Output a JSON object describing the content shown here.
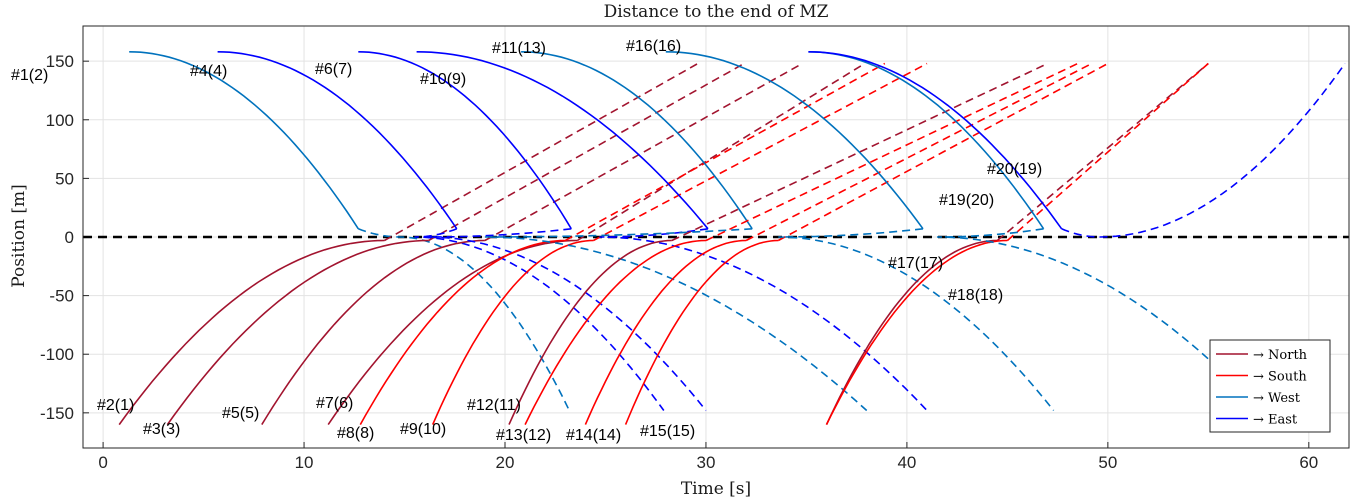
{
  "chart_data": {
    "type": "line",
    "title": "Distance to the end of MZ",
    "xlabel": "Time [s]",
    "ylabel": "Position [m]",
    "xlim": [
      -1,
      62
    ],
    "ylim": [
      -180,
      180
    ],
    "xticks": [
      0,
      10,
      20,
      30,
      40,
      50,
      60
    ],
    "yticks": [
      -150,
      -100,
      -50,
      0,
      50,
      100,
      150
    ],
    "grid": true,
    "legend_position": "bottom-right",
    "reference_line": {
      "y": 0,
      "style": "black dashed"
    },
    "colors": {
      "North": "#a2142f",
      "South": "#ff0000",
      "West": "#0072bd",
      "East": "#0000ff"
    },
    "legend": [
      {
        "key": "North",
        "label": "→ North"
      },
      {
        "key": "South",
        "label": "→ South"
      },
      {
        "key": "West",
        "label": "→ West"
      },
      {
        "key": "East",
        "label": "→ East"
      }
    ],
    "vehicles": [
      {
        "label": "#1(2)",
        "dir": "West",
        "t0": 1.3,
        "t1": 12.7,
        "tmin": 14.8,
        "tend": 23.2,
        "yend": -148
      },
      {
        "label": "#2(1)",
        "dir": "North",
        "t0": 0.8,
        "t1": 14.0,
        "tmin": 14.0,
        "tend": 29.6,
        "yend": 148
      },
      {
        "label": "#3(3)",
        "dir": "North",
        "t0": 3.2,
        "t1": 16.2,
        "tmin": 16.2,
        "tend": 31.9,
        "yend": 148
      },
      {
        "label": "#4(4)",
        "dir": "East",
        "t0": 5.7,
        "t1": 17.6,
        "tmin": 15.5,
        "tend": 27.9,
        "yend": -148
      },
      {
        "label": "#5(5)",
        "dir": "North",
        "t0": 7.9,
        "t1": 19.0,
        "tmin": 19.0,
        "tend": 34.8,
        "yend": 148
      },
      {
        "label": "#6(7)",
        "dir": "East",
        "t0": 12.7,
        "t1": 23.3,
        "tmin": 16.2,
        "tend": 30.0,
        "yend": -148
      },
      {
        "label": "#7(6)",
        "dir": "North",
        "t0": 11.2,
        "t1": 23.6,
        "tmin": 23.6,
        "tend": 37.9,
        "yend": 148
      },
      {
        "label": "#8(8)",
        "dir": "South",
        "t0": 12.8,
        "t1": 23.0,
        "tmin": 23.0,
        "tend": 38.9,
        "yend": 148
      },
      {
        "label": "#9(10)",
        "dir": "South",
        "t0": 16.4,
        "t1": 24.4,
        "tmin": 24.4,
        "tend": 41.0,
        "yend": 148
      },
      {
        "label": "#10(9)",
        "dir": "East",
        "t0": 15.6,
        "t1": 30.1,
        "tmin": 24.7,
        "tend": 41.0,
        "yend": -148
      },
      {
        "label": "#11(13)",
        "dir": "West",
        "t0": 20.8,
        "t1": 32.3,
        "tmin": 19.0,
        "tend": 38.0,
        "yend": -148
      },
      {
        "label": "#12(11)",
        "dir": "North",
        "t0": 20.2,
        "t1": 28.3,
        "tmin": 28.3,
        "tend": 47.0,
        "yend": 148
      },
      {
        "label": "#13(12)",
        "dir": "South",
        "t0": 21.0,
        "t1": 30.0,
        "tmin": 30.0,
        "tend": 48.5,
        "yend": 148
      },
      {
        "label": "#14(14)",
        "dir": "South",
        "t0": 24.0,
        "t1": 32.0,
        "tmin": 32.0,
        "tend": 49.2,
        "yend": 148
      },
      {
        "label": "#15(15)",
        "dir": "South",
        "t0": 26.0,
        "t1": 33.6,
        "tmin": 33.6,
        "tend": 50.0,
        "yend": 148
      },
      {
        "label": "#16(16)",
        "dir": "West",
        "t0": 28.0,
        "t1": 40.8,
        "tmin": 33.6,
        "tend": 47.3,
        "yend": -148
      },
      {
        "label": "#17(17)",
        "dir": "North",
        "t0": 36.0,
        "t1": 44.5,
        "tmin": 44.5,
        "tend": 55.0,
        "yend": 148
      },
      {
        "label": "#18(18)",
        "dir": "South",
        "t0": 36.0,
        "t1": 45.0,
        "tmin": 45.0,
        "tend": 55.0,
        "yend": 148
      },
      {
        "label": "#19(20)",
        "dir": "West",
        "t0": 35.1,
        "t1": 46.8,
        "tmin": 41.5,
        "tend": 56.0,
        "yend": -120
      },
      {
        "label": "#20(19)",
        "dir": "East",
        "t0": 35.1,
        "t1": 47.7,
        "tmin": 49.6,
        "tend": 61.8,
        "yend": 148
      }
    ]
  }
}
